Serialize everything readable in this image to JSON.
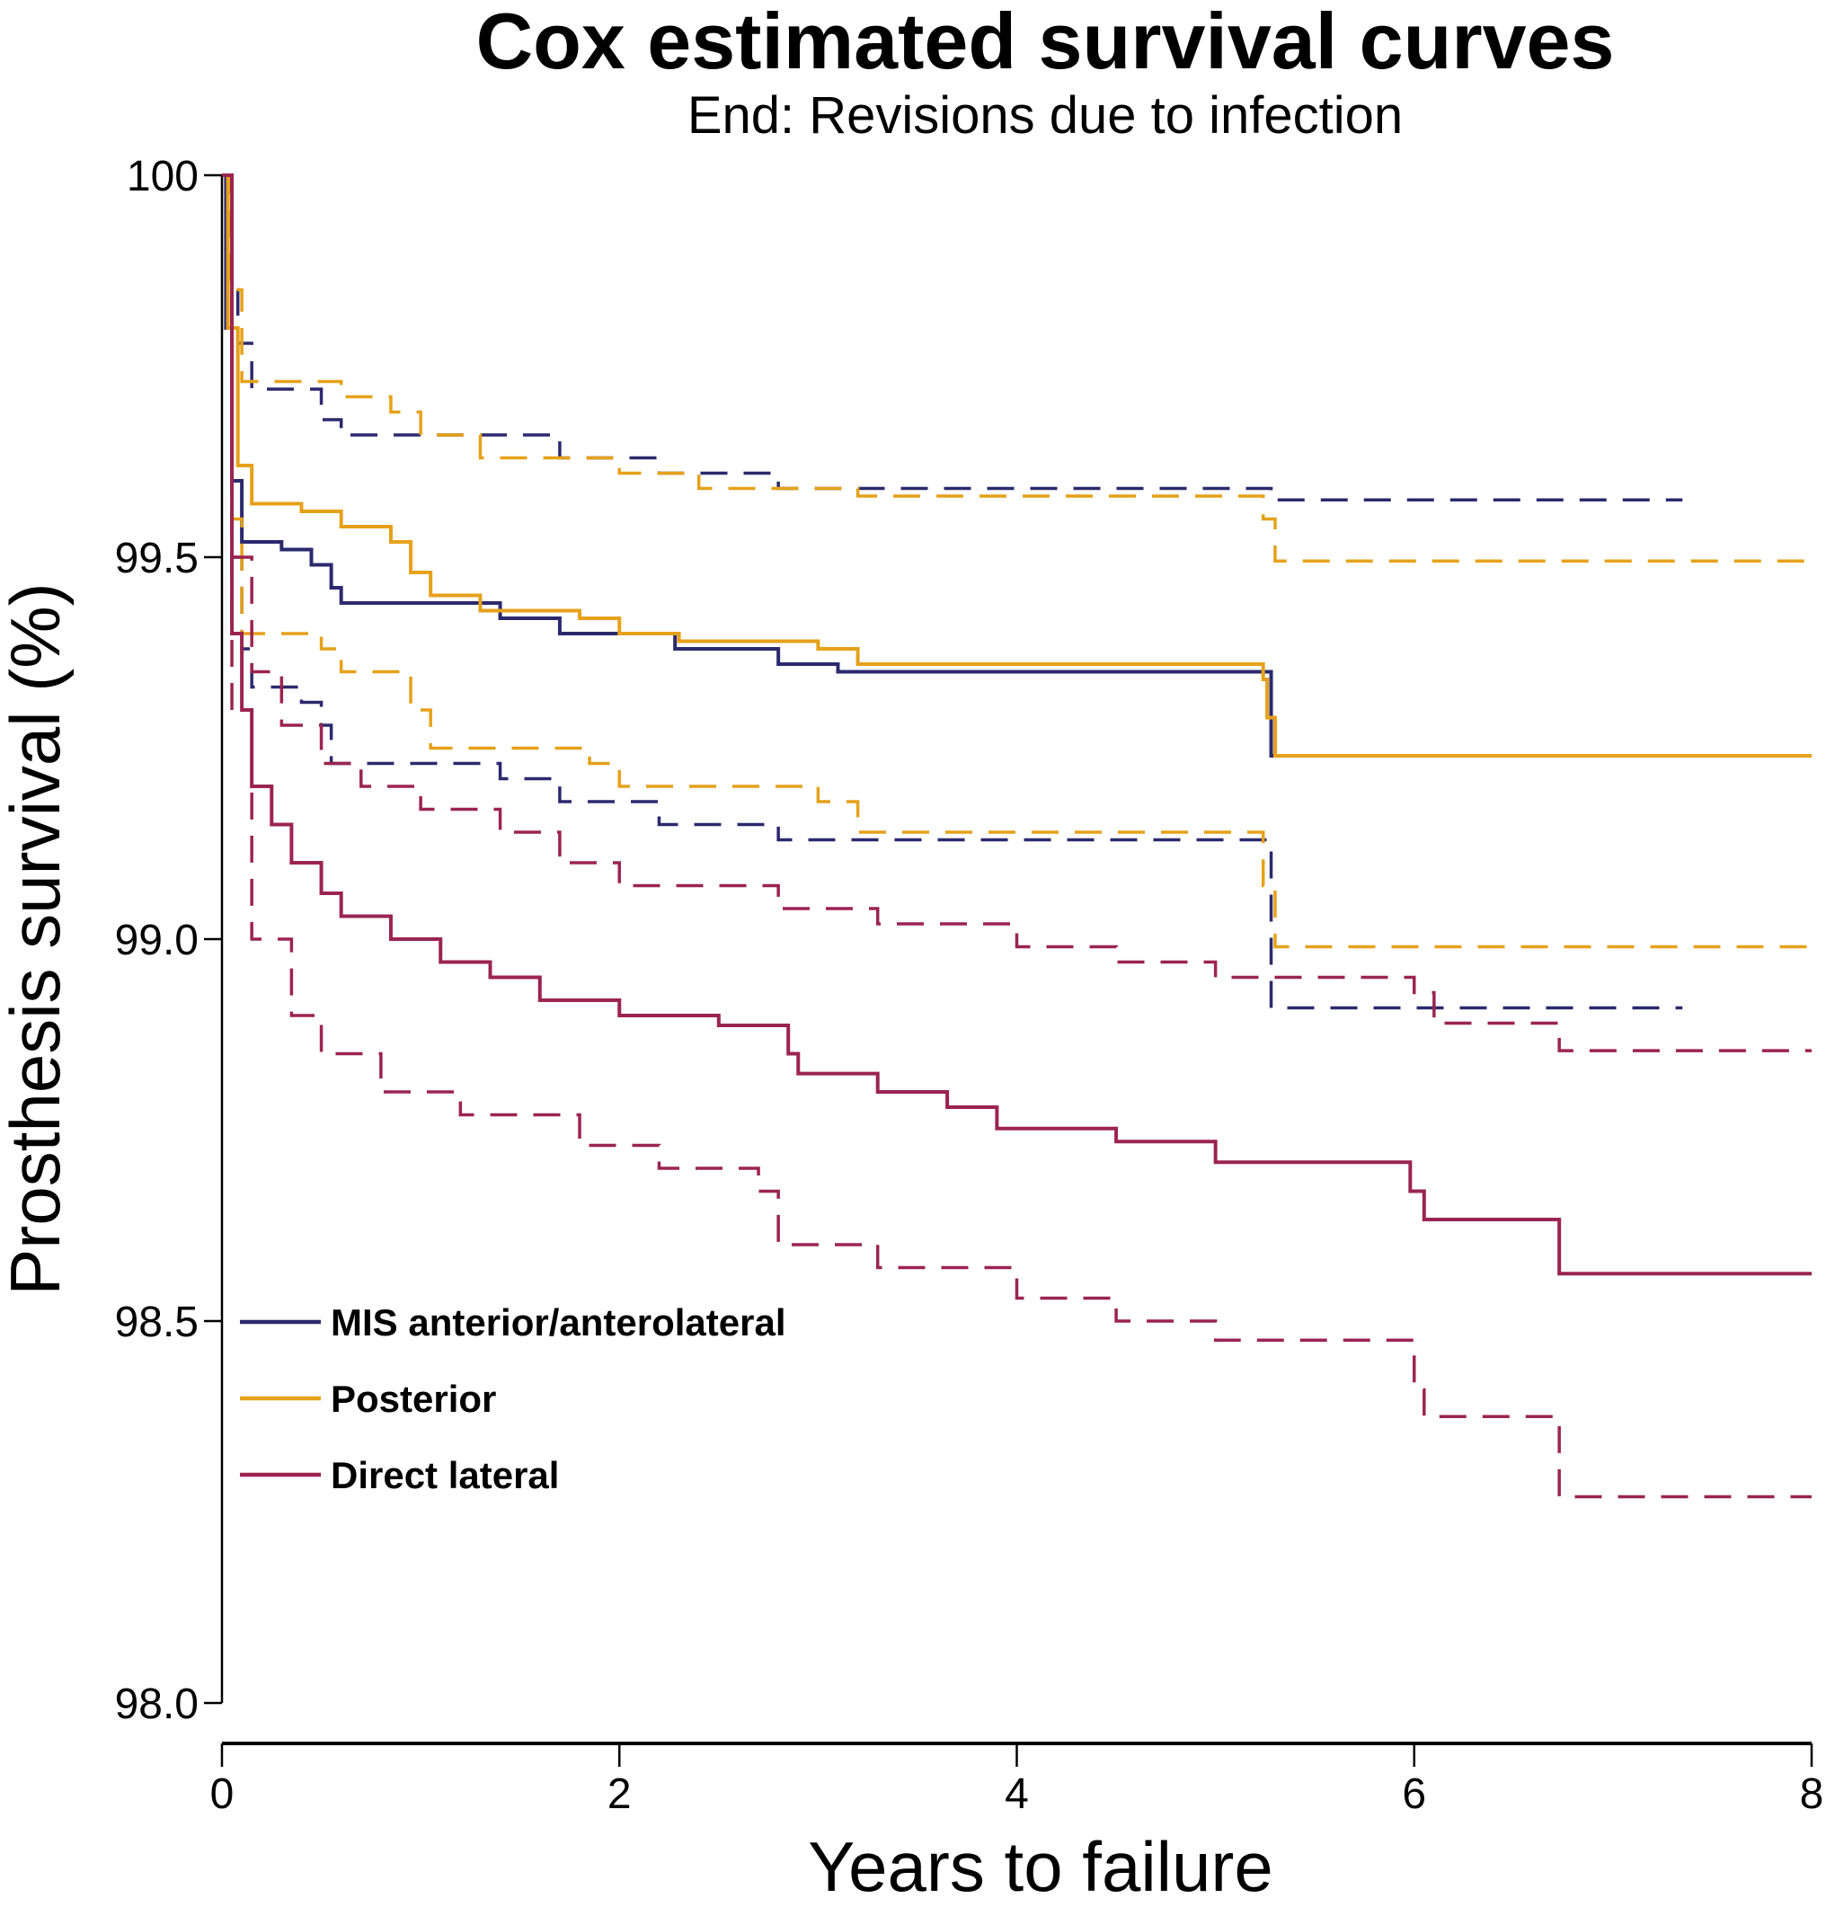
{
  "chart_data": {
    "type": "line",
    "title": "Cox estimated survival curves",
    "subtitle": "End: Revisions due to infection",
    "xlabel": "Years to failure",
    "ylabel": "Prosthesis survival (%)",
    "xlim": [
      0,
      8
    ],
    "ylim": [
      98,
      100
    ],
    "xticks": [
      "0",
      "2",
      "4",
      "6",
      "8"
    ],
    "yticks": [
      "100",
      "99.5",
      "99.0",
      "98.5",
      "98.0"
    ],
    "grid": false,
    "legend_position": "bottom-left",
    "step": true,
    "series": [
      {
        "name": "MIS anterior/anterolateral",
        "color": "#2b2a6e",
        "style": "solid",
        "points": [
          [
            0,
            100
          ],
          [
            0.02,
            99.8
          ],
          [
            0.05,
            99.6
          ],
          [
            0.1,
            99.52
          ],
          [
            0.3,
            99.51
          ],
          [
            0.45,
            99.49
          ],
          [
            0.55,
            99.46
          ],
          [
            0.6,
            99.44
          ],
          [
            1.4,
            99.42
          ],
          [
            1.7,
            99.4
          ],
          [
            2.28,
            99.38
          ],
          [
            2.8,
            99.36
          ],
          [
            3.1,
            99.35
          ],
          [
            5.28,
            99.24
          ],
          [
            7.35,
            99.24
          ]
        ]
      },
      {
        "name": "MIS anterior/anterolateral upper CI",
        "color": "#2b2a6e",
        "style": "dashed",
        "points": [
          [
            0,
            100
          ],
          [
            0.03,
            99.85
          ],
          [
            0.08,
            99.78
          ],
          [
            0.15,
            99.72
          ],
          [
            0.5,
            99.68
          ],
          [
            0.6,
            99.66
          ],
          [
            1.7,
            99.63
          ],
          [
            2.2,
            99.61
          ],
          [
            2.8,
            99.59
          ],
          [
            5.28,
            99.575
          ],
          [
            7.35,
            99.575
          ]
        ]
      },
      {
        "name": "MIS anterior/anterolateral lower CI",
        "color": "#2b2a6e",
        "style": "dashed",
        "points": [
          [
            0,
            100
          ],
          [
            0.05,
            99.5
          ],
          [
            0.1,
            99.38
          ],
          [
            0.15,
            99.33
          ],
          [
            0.4,
            99.31
          ],
          [
            0.5,
            99.28
          ],
          [
            0.55,
            99.23
          ],
          [
            1.4,
            99.21
          ],
          [
            1.7,
            99.18
          ],
          [
            2.2,
            99.15
          ],
          [
            2.8,
            99.13
          ],
          [
            5.28,
            98.91
          ],
          [
            7.35,
            98.91
          ]
        ]
      },
      {
        "name": "Posterior",
        "color": "#e6a11a",
        "style": "solid",
        "points": [
          [
            0,
            100
          ],
          [
            0.03,
            99.8
          ],
          [
            0.08,
            99.62
          ],
          [
            0.15,
            99.57
          ],
          [
            0.4,
            99.56
          ],
          [
            0.6,
            99.54
          ],
          [
            0.85,
            99.52
          ],
          [
            0.95,
            99.48
          ],
          [
            1.05,
            99.45
          ],
          [
            1.3,
            99.43
          ],
          [
            1.8,
            99.42
          ],
          [
            2.0,
            99.4
          ],
          [
            2.3,
            99.39
          ],
          [
            3.0,
            99.38
          ],
          [
            3.2,
            99.36
          ],
          [
            5.24,
            99.34
          ],
          [
            5.26,
            99.29
          ],
          [
            5.3,
            99.24
          ],
          [
            8,
            99.24
          ]
        ]
      },
      {
        "name": "Posterior upper CI",
        "color": "#e6a11a",
        "style": "dashed",
        "points": [
          [
            0,
            100
          ],
          [
            0.04,
            99.85
          ],
          [
            0.1,
            99.73
          ],
          [
            0.6,
            99.71
          ],
          [
            0.85,
            99.69
          ],
          [
            1.0,
            99.66
          ],
          [
            1.3,
            99.63
          ],
          [
            2.0,
            99.61
          ],
          [
            2.4,
            99.59
          ],
          [
            3.2,
            99.58
          ],
          [
            5.24,
            99.55
          ],
          [
            5.3,
            99.495
          ],
          [
            8,
            99.495
          ]
        ]
      },
      {
        "name": "Posterior lower CI",
        "color": "#e6a11a",
        "style": "dashed",
        "points": [
          [
            0,
            100
          ],
          [
            0.05,
            99.55
          ],
          [
            0.1,
            99.4
          ],
          [
            0.5,
            99.38
          ],
          [
            0.6,
            99.35
          ],
          [
            0.95,
            99.3
          ],
          [
            1.05,
            99.25
          ],
          [
            1.85,
            99.23
          ],
          [
            2.0,
            99.2
          ],
          [
            3.0,
            99.18
          ],
          [
            3.2,
            99.14
          ],
          [
            5.24,
            99.07
          ],
          [
            5.3,
            98.99
          ],
          [
            8,
            98.99
          ]
        ]
      },
      {
        "name": "Direct lateral",
        "color": "#9b2450",
        "style": "solid",
        "points": [
          [
            0,
            100
          ],
          [
            0.05,
            99.4
          ],
          [
            0.1,
            99.3
          ],
          [
            0.15,
            99.2
          ],
          [
            0.25,
            99.15
          ],
          [
            0.35,
            99.1
          ],
          [
            0.5,
            99.06
          ],
          [
            0.6,
            99.03
          ],
          [
            0.85,
            99.0
          ],
          [
            1.1,
            98.97
          ],
          [
            1.35,
            98.95
          ],
          [
            1.6,
            98.92
          ],
          [
            2.0,
            98.9
          ],
          [
            2.5,
            98.887
          ],
          [
            2.85,
            98.85
          ],
          [
            2.9,
            98.824
          ],
          [
            3.3,
            98.8
          ],
          [
            3.65,
            98.78
          ],
          [
            3.9,
            98.752
          ],
          [
            4.5,
            98.735
          ],
          [
            5.0,
            98.708
          ],
          [
            5.98,
            98.67
          ],
          [
            6.05,
            98.633
          ],
          [
            6.73,
            98.562
          ],
          [
            8,
            98.562
          ]
        ]
      },
      {
        "name": "Direct lateral upper CI",
        "color": "#9b2450",
        "style": "dashed",
        "points": [
          [
            0,
            100
          ],
          [
            0.05,
            99.5
          ],
          [
            0.15,
            99.35
          ],
          [
            0.3,
            99.28
          ],
          [
            0.5,
            99.23
          ],
          [
            0.7,
            99.2
          ],
          [
            1.0,
            99.17
          ],
          [
            1.4,
            99.14
          ],
          [
            1.7,
            99.1
          ],
          [
            2.0,
            99.07
          ],
          [
            2.8,
            99.04
          ],
          [
            3.3,
            99.02
          ],
          [
            4.0,
            98.99
          ],
          [
            4.5,
            98.97
          ],
          [
            5.0,
            98.95
          ],
          [
            6.0,
            98.93
          ],
          [
            6.1,
            98.89
          ],
          [
            6.73,
            98.854
          ],
          [
            8,
            98.854
          ]
        ]
      },
      {
        "name": "Direct lateral lower CI",
        "color": "#9b2450",
        "style": "dashed",
        "points": [
          [
            0,
            100
          ],
          [
            0.05,
            99.3
          ],
          [
            0.15,
            99.0
          ],
          [
            0.35,
            98.9
          ],
          [
            0.5,
            98.85
          ],
          [
            0.8,
            98.8
          ],
          [
            1.2,
            98.77
          ],
          [
            1.8,
            98.73
          ],
          [
            2.2,
            98.7
          ],
          [
            2.7,
            98.67
          ],
          [
            2.8,
            98.6
          ],
          [
            3.3,
            98.57
          ],
          [
            4.0,
            98.53
          ],
          [
            4.5,
            98.5
          ],
          [
            5.0,
            98.475
          ],
          [
            6.0,
            98.41
          ],
          [
            6.05,
            98.375
          ],
          [
            6.73,
            98.27
          ],
          [
            8,
            98.27
          ]
        ]
      }
    ],
    "legend": [
      {
        "label": "MIS anterior/anterolateral",
        "color": "#2b2a6e"
      },
      {
        "label": "Posterior",
        "color": "#e6a11a"
      },
      {
        "label": "Direct lateral",
        "color": "#9b2450"
      }
    ]
  }
}
